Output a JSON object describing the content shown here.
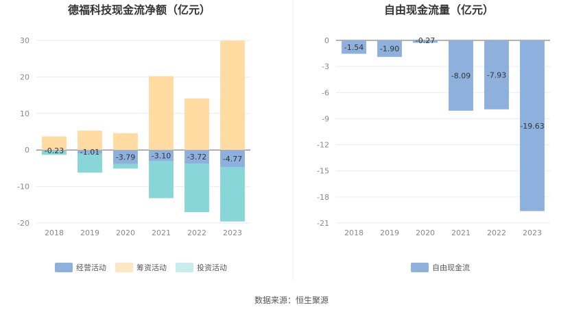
{
  "colors": {
    "operating": "#8eb0dc",
    "financing": "#ffdba1",
    "investing": "#88d6d8",
    "financing_legend": "#fde6c2",
    "investing_legend": "#c7eced",
    "free_cash_flow": "#8eb0dc",
    "grid": "#e6eaf2",
    "axis": "#666666"
  },
  "source_note": "数据来源：恒生聚源",
  "chart_data": [
    {
      "type": "bar",
      "stacked": true,
      "title": "德福科技现金流净额（亿元）",
      "categories": [
        "2018",
        "2019",
        "2020",
        "2021",
        "2022",
        "2023"
      ],
      "ylim": [
        -20,
        30
      ],
      "yticks": [
        30,
        20,
        10,
        0,
        -10,
        -20
      ],
      "grid": true,
      "legend_position": "bottom",
      "series": [
        {
          "name": "经营活动",
          "values": [
            -0.23,
            -1.01,
            -3.79,
            -3.1,
            -3.72,
            -4.77
          ],
          "labels": [
            "-0.23",
            "-1.01",
            "-3.79",
            "-3.10",
            "-3.72",
            "-4.77"
          ]
        },
        {
          "name": "筹资活动",
          "values": [
            3.7,
            5.3,
            4.6,
            20.2,
            14.1,
            29.9
          ]
        },
        {
          "name": "投资活动",
          "values": [
            -1.1,
            -5.2,
            -1.3,
            -10.1,
            -13.3,
            -14.8
          ]
        }
      ]
    },
    {
      "type": "bar",
      "title": "自由现金流量（亿元）",
      "categories": [
        "2018",
        "2019",
        "2020",
        "2021",
        "2022",
        "2023"
      ],
      "ylim": [
        -21,
        0
      ],
      "yticks": [
        0,
        -3,
        -6,
        -9,
        -12,
        -15,
        -18,
        -21
      ],
      "grid": true,
      "legend_position": "bottom",
      "series": [
        {
          "name": "自由现金流",
          "values": [
            -1.54,
            -1.9,
            -0.27,
            -8.09,
            -7.93,
            -19.63
          ],
          "labels": [
            "-1.54",
            "-1.90",
            "-0.27",
            "-8.09",
            "-7.93",
            "-19.63"
          ]
        }
      ]
    }
  ]
}
